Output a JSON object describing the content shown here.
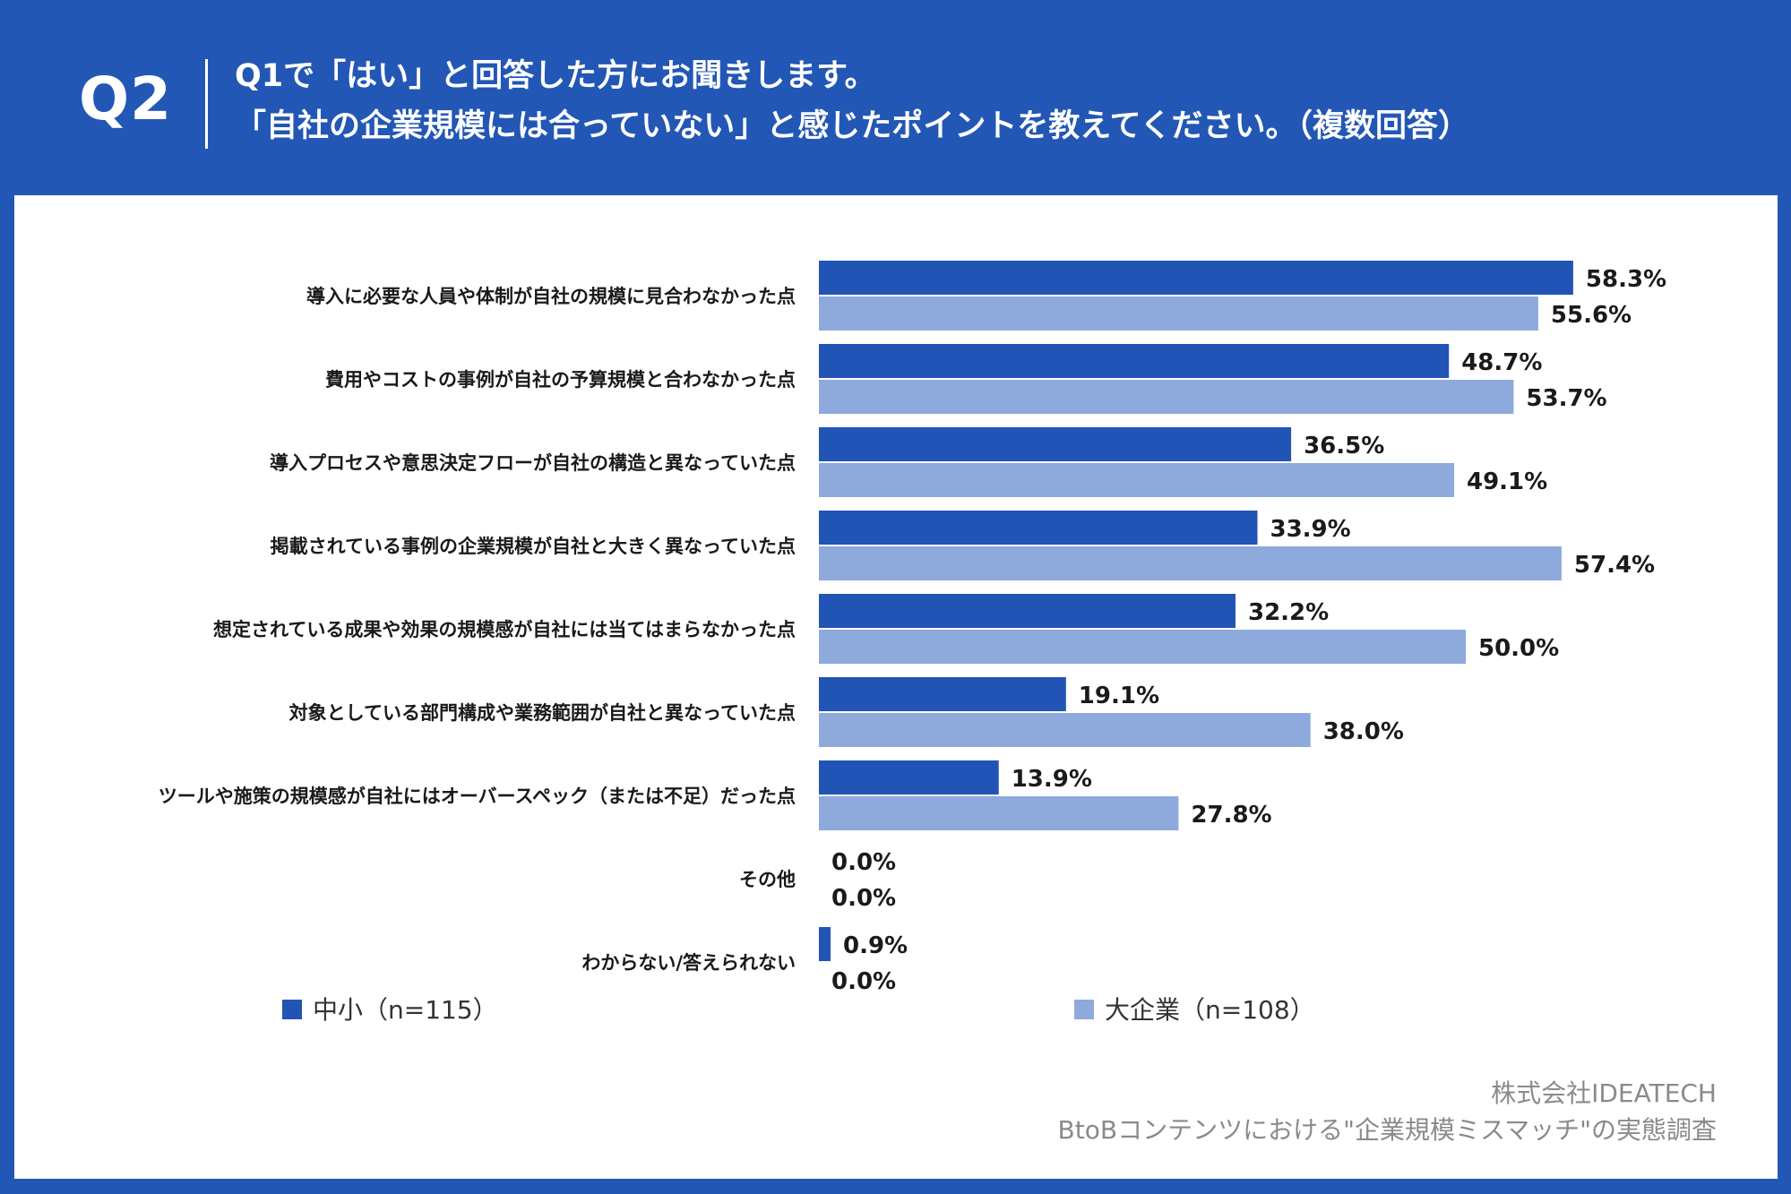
{
  "header": {
    "question_number": "Q2",
    "line1": "Q1で「はい」と回答した方にお聞きします。",
    "line2": "「自社の企業規模には合っていない」と感じたポイントを教えてください。（複数回答）"
  },
  "colors": {
    "background": "#2357b5",
    "series_small": "#2254b5",
    "series_large": "#8ea9dc",
    "panel": "#ffffff"
  },
  "chart_data": {
    "type": "bar",
    "orientation": "horizontal",
    "title": "「自社の企業規模には合っていない」と感じたポイント（複数回答）",
    "categories": [
      "導入に必要な人員や体制が自社の規模に見合わなかった点",
      "費用やコストの事例が自社の予算規模と合わなかった点",
      "導入プロセスや意思決定フローが自社の構造と異なっていた点",
      "掲載されている事例の企業規模が自社と大きく異なっていた点",
      "想定されている成果や効果の規模感が自社には当てはまらなかった点",
      "対象としている部門構成や業務範囲が自社と異なっていた点",
      "ツールや施策の規模感が自社にはオーバースペック（または不足）だった点",
      "その他",
      "わからない/答えられない"
    ],
    "series": [
      {
        "name": "中小（n=115）",
        "values": [
          58.3,
          48.7,
          36.5,
          33.9,
          32.2,
          19.1,
          13.9,
          0.0,
          0.9
        ],
        "labels": [
          "58.3%",
          "48.7%",
          "36.5%",
          "33.9%",
          "32.2%",
          "19.1%",
          "13.9%",
          "0.0%",
          "0.9%"
        ]
      },
      {
        "name": "大企業（n=108）",
        "values": [
          55.6,
          53.7,
          49.1,
          57.4,
          50.0,
          38.0,
          27.8,
          0.0,
          0.0
        ],
        "labels": [
          "55.6%",
          "53.7%",
          "49.1%",
          "57.4%",
          "50.0%",
          "38.0%",
          "27.8%",
          "0.0%",
          "0.0%"
        ]
      }
    ],
    "xlim": [
      0,
      100
    ],
    "unit": "%",
    "grid": false,
    "legend": "bottom"
  },
  "source": {
    "company": "株式会社IDEATECH",
    "survey": "BtoBコンテンツにおける\"企業規模ミスマッチ\"の実態調査"
  }
}
